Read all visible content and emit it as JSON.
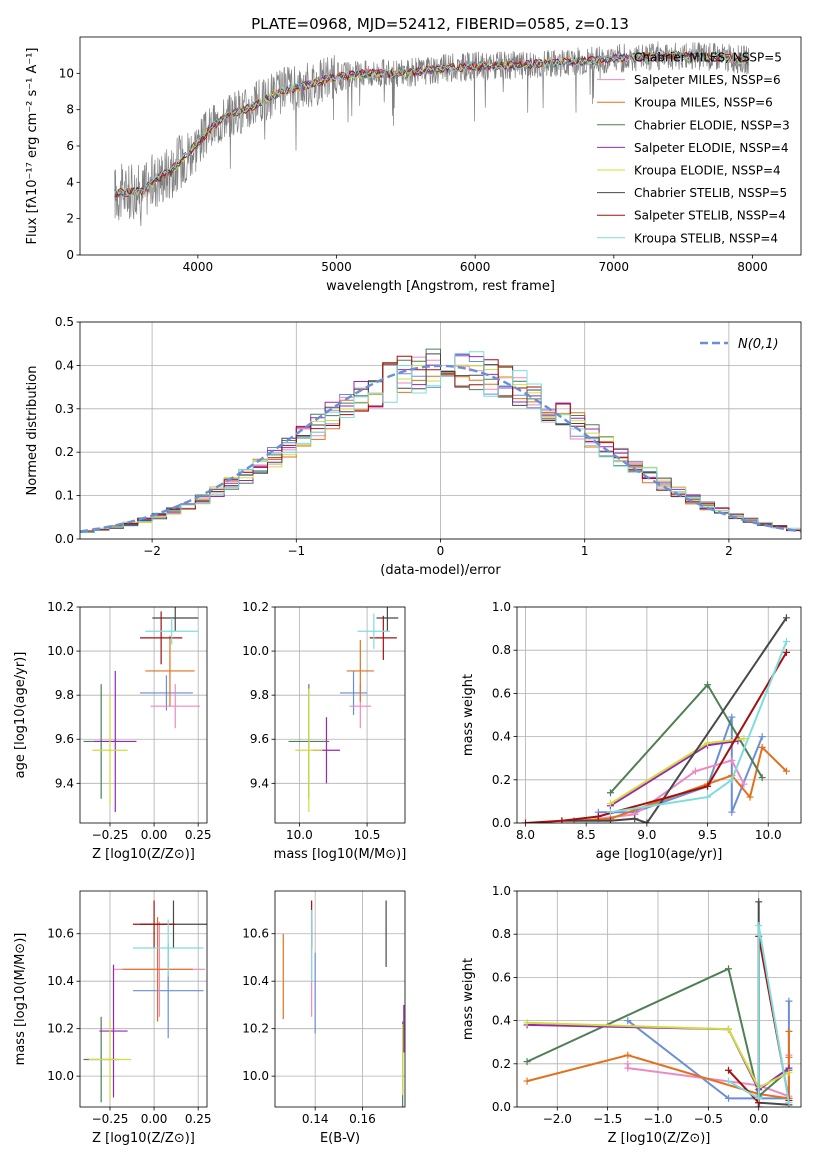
{
  "figure_title": "PLATE=0968, MJD=52412, FIBERID=0585, z=0.13",
  "colors": {
    "chabrier_miles": "#6a8fd6",
    "salpeter_miles": "#ee88c4",
    "kroupa_miles": "#e2711e",
    "chabrier_elodie": "#4f7f55",
    "salpeter_elodie": "#9b27b6",
    "kroupa_elodie": "#cfdd3e",
    "chabrier_stelib": "#484848",
    "salpeter_stelib": "#a31010",
    "kroupa_stelib": "#7fdcdc",
    "data": "#808080",
    "gaussian": "#6a8fd6"
  },
  "chart_data": [
    {
      "id": "spectrum",
      "type": "line",
      "title": "PLATE=0968, MJD=52412, FIBERID=0585, z=0.13",
      "xlabel": "wavelength [Angstrom, rest frame]",
      "ylabel": "Flux [fλ10⁻¹⁷ erg cm⁻² s⁻¹ A⁻¹]",
      "xlim": [
        3150,
        8350
      ],
      "ylim": [
        0,
        12
      ],
      "xticks": [
        "4000",
        "5000",
        "6000",
        "7000",
        "8000"
      ],
      "yticks": [
        "0",
        "2",
        "4",
        "6",
        "8",
        "10"
      ],
      "legend": "top-right",
      "legend_entries": [
        "Chabrier MILES, NSSP=5",
        "Salpeter MILES, NSSP=6",
        "Kroupa MILES, NSSP=6",
        "Chabrier ELODIE, NSSP=3",
        "Salpeter ELODIE, NSSP=4",
        "Kroupa ELODIE, NSSP=4",
        "Chabrier STELIB, NSSP=5",
        "Salpeter STELIB, NSSP=4",
        "Kroupa STELIB, NSSP=4"
      ],
      "continuum": {
        "x": [
          3400,
          3600,
          3700,
          3800,
          3900,
          4000,
          4100,
          4200,
          4400,
          4600,
          4800,
          5000,
          5200,
          5400,
          5600,
          5800,
          6000,
          6200,
          6400,
          6600,
          6800,
          7000,
          7200,
          7400,
          7700,
          8000
        ],
        "y": [
          3.4,
          3.5,
          4.2,
          4.6,
          5.4,
          6.2,
          7.0,
          7.6,
          8.2,
          9.0,
          9.4,
          9.8,
          10.0,
          10.0,
          10.1,
          10.3,
          10.4,
          10.4,
          10.5,
          10.6,
          10.7,
          10.8,
          10.9,
          11.0,
          10.9,
          10.7
        ]
      }
    },
    {
      "id": "residuals",
      "type": "line",
      "xlabel": "(data-model)/error",
      "ylabel": "Normed distribution",
      "xlim": [
        -2.5,
        2.5
      ],
      "ylim": [
        0,
        0.5
      ],
      "xticks": [
        "−2",
        "−1",
        "0",
        "1",
        "2"
      ],
      "yticks": [
        "0.0",
        "0.1",
        "0.2",
        "0.3",
        "0.4",
        "0.5"
      ],
      "legend": "top-right",
      "legend_entries": [
        "N(0,1)"
      ],
      "gaussian": {
        "mean": 0,
        "sigma": 1
      },
      "bin_width": 0.1
    },
    {
      "id": "age_vs_Z",
      "type": "scatter",
      "xlabel": "Z [log10(Z/Z⊙)]",
      "ylabel": "age  [log10(age/yr)]",
      "xlim": [
        -0.42,
        0.3
      ],
      "ylim": [
        9.22,
        10.2
      ],
      "xticks": [
        "−0.25",
        "0.00",
        "0.25"
      ],
      "yticks": [
        "9.4",
        "9.6",
        "9.8",
        "10.0",
        "10.2"
      ],
      "points": [
        {
          "model": "chabrier_miles",
          "x": 0.07,
          "xerr": 0.15,
          "y": 9.81,
          "yerr": 0.08
        },
        {
          "model": "salpeter_miles",
          "x": 0.12,
          "xerr": 0.14,
          "y": 9.75,
          "yerr": 0.1
        },
        {
          "model": "kroupa_miles",
          "x": 0.09,
          "xerr": 0.14,
          "y": 9.91,
          "yerr": 0.16
        },
        {
          "model": "chabrier_elodie",
          "x": -0.3,
          "xerr": 0.1,
          "y": 9.59,
          "yerr": 0.26
        },
        {
          "model": "salpeter_elodie",
          "x": -0.22,
          "xerr": 0.12,
          "y": 9.59,
          "yerr": 0.32
        },
        {
          "model": "kroupa_elodie",
          "x": -0.25,
          "xerr": 0.1,
          "y": 9.55,
          "yerr": 0.25
        },
        {
          "model": "chabrier_stelib",
          "x": 0.12,
          "xerr": 0.13,
          "y": 10.15,
          "yerr": 0.06
        },
        {
          "model": "salpeter_stelib",
          "x": 0.04,
          "xerr": 0.12,
          "y": 10.06,
          "yerr": 0.12
        },
        {
          "model": "kroupa_stelib",
          "x": 0.1,
          "xerr": 0.15,
          "y": 10.09,
          "yerr": 0.06
        }
      ]
    },
    {
      "id": "age_vs_mass",
      "type": "scatter",
      "xlabel": "mass [log10(M/M⊙)]",
      "ylabel": "",
      "xlim": [
        9.82,
        10.78
      ],
      "ylim": [
        9.22,
        10.2
      ],
      "xticks": [
        "10.0",
        "10.5"
      ],
      "yticks": [
        "9.4",
        "9.6",
        "9.8",
        "10.0",
        "10.2"
      ],
      "points": [
        {
          "model": "chabrier_miles",
          "x": 10.4,
          "xerr": 0.1,
          "y": 9.81,
          "yerr": 0.1
        },
        {
          "model": "salpeter_miles",
          "x": 10.45,
          "xerr": 0.08,
          "y": 9.75,
          "yerr": 0.1
        },
        {
          "model": "kroupa_miles",
          "x": 10.45,
          "xerr": 0.1,
          "y": 9.91,
          "yerr": 0.14
        },
        {
          "model": "chabrier_elodie",
          "x": 10.07,
          "xerr": 0.15,
          "y": 9.59,
          "yerr": 0.26
        },
        {
          "model": "salpeter_elodie",
          "x": 10.2,
          "xerr": 0.1,
          "y": 9.55,
          "yerr": 0.15
        },
        {
          "model": "kroupa_elodie",
          "x": 10.07,
          "xerr": 0.1,
          "y": 9.55,
          "yerr": 0.28
        },
        {
          "model": "chabrier_stelib",
          "x": 10.65,
          "xerr": 0.08,
          "y": 10.15,
          "yerr": 0.06
        },
        {
          "model": "salpeter_stelib",
          "x": 10.62,
          "xerr": 0.1,
          "y": 10.06,
          "yerr": 0.1
        },
        {
          "model": "kroupa_stelib",
          "x": 10.55,
          "xerr": 0.12,
          "y": 10.09,
          "yerr": 0.08
        }
      ]
    },
    {
      "id": "weight_vs_age",
      "type": "line",
      "xlabel": "age  [log10(age/yr)]",
      "ylabel": "mass weight",
      "xlim": [
        7.93,
        10.27
      ],
      "ylim": [
        0,
        1
      ],
      "xticks": [
        "8.0",
        "8.5",
        "9.0",
        "9.5",
        "10.0"
      ],
      "yticks": [
        "0.0",
        "0.2",
        "0.4",
        "0.6",
        "0.8",
        "1.0"
      ],
      "series": [
        {
          "model": "chabrier_miles",
          "x": [
            8.6,
            8.9,
            9.5,
            9.7,
            9.7,
            9.95
          ],
          "y": [
            0.05,
            0.05,
            0.17,
            0.49,
            0.05,
            0.4
          ]
        },
        {
          "model": "salpeter_miles",
          "x": [
            8.6,
            8.9,
            9.4,
            9.7,
            9.8
          ],
          "y": [
            0.02,
            0.04,
            0.24,
            0.29,
            0.18
          ]
        },
        {
          "model": "kroupa_miles",
          "x": [
            8.4,
            8.7,
            9.5,
            9.7,
            9.85,
            9.95,
            10.15
          ],
          "y": [
            0.01,
            0.02,
            0.18,
            0.22,
            0.12,
            0.35,
            0.24
          ]
        },
        {
          "model": "chabrier_elodie",
          "x": [
            8.7,
            9.5,
            9.95
          ],
          "y": [
            0.14,
            0.64,
            0.21
          ]
        },
        {
          "model": "salpeter_elodie",
          "x": [
            8.7,
            9.5,
            9.75
          ],
          "y": [
            0.08,
            0.36,
            0.38
          ]
        },
        {
          "model": "kroupa_elodie",
          "x": [
            8.7,
            9.5,
            9.8
          ],
          "y": [
            0.09,
            0.37,
            0.39
          ]
        },
        {
          "model": "chabrier_stelib",
          "x": [
            8.3,
            8.7,
            8.9,
            9.0,
            10.15
          ],
          "y": [
            0.01,
            0.01,
            0.02,
            0.0,
            0.95
          ]
        },
        {
          "model": "salpeter_stelib",
          "x": [
            8.0,
            8.3,
            8.6,
            9.5,
            10.15
          ],
          "y": [
            0.0,
            0.01,
            0.03,
            0.17,
            0.79
          ]
        },
        {
          "model": "kroupa_stelib",
          "x": [
            8.7,
            9.5,
            9.7,
            10.15
          ],
          "y": [
            0.05,
            0.12,
            0.2,
            0.84
          ]
        }
      ]
    },
    {
      "id": "mass_vs_Z",
      "type": "scatter",
      "xlabel": "Z [log10(Z/Z⊙)]",
      "ylabel": "mass [log10(M/M⊙)]",
      "xlim": [
        -0.42,
        0.3
      ],
      "ylim": [
        9.87,
        10.78
      ],
      "xticks": [
        "−0.25",
        "0.00",
        "0.25"
      ],
      "yticks": [
        "10.0",
        "10.2",
        "10.4",
        "10.6"
      ],
      "points": [
        {
          "model": "chabrier_miles",
          "x": 0.08,
          "xerr": 0.2,
          "y": 10.36,
          "yerr": 0.2
        },
        {
          "model": "salpeter_miles",
          "x": 0.03,
          "xerr": 0.26,
          "y": 10.45,
          "yerr": 0.2
        },
        {
          "model": "kroupa_miles",
          "x": 0.02,
          "xerr": 0.2,
          "y": 10.45,
          "yerr": 0.22
        },
        {
          "model": "chabrier_elodie",
          "x": -0.3,
          "xerr": 0.1,
          "y": 10.07,
          "yerr": 0.18
        },
        {
          "model": "salpeter_elodie",
          "x": -0.23,
          "xerr": 0.08,
          "y": 10.19,
          "yerr": 0.28
        },
        {
          "model": "kroupa_elodie",
          "x": -0.25,
          "xerr": 0.12,
          "y": 10.07,
          "yerr": 0.17
        },
        {
          "model": "chabrier_stelib",
          "x": 0.11,
          "xerr": 0.19,
          "y": 10.64,
          "yerr": 0.1
        },
        {
          "model": "salpeter_stelib",
          "x": 0.0,
          "xerr": 0.12,
          "y": 10.64,
          "yerr": 0.1
        },
        {
          "model": "kroupa_stelib",
          "x": 0.08,
          "xerr": 0.2,
          "y": 10.54,
          "yerr": 0.12
        }
      ]
    },
    {
      "id": "mass_vs_ebv",
      "type": "scatter",
      "xlabel": "E(B-V)",
      "ylabel": "",
      "xlim": [
        0.123,
        0.178
      ],
      "ylim": [
        9.87,
        10.78
      ],
      "xticks": [
        "0.14",
        "0.16"
      ],
      "yticks": [
        "10.0",
        "10.2",
        "10.4",
        "10.6"
      ],
      "points": [
        {
          "model": "chabrier_miles",
          "x": 0.14,
          "y": 10.35,
          "yerr": 0.17
        },
        {
          "model": "salpeter_miles",
          "x": 0.1385,
          "y": 10.45,
          "yerr": 0.2
        },
        {
          "model": "kroupa_miles",
          "x": 0.1265,
          "y": 10.42,
          "yerr": 0.18
        },
        {
          "model": "chabrier_elodie",
          "x": 0.177,
          "y": 10.05,
          "yerr": 0.18
        },
        {
          "model": "salpeter_elodie",
          "x": 0.1775,
          "y": 10.2,
          "yerr": 0.1
        },
        {
          "model": "kroupa_elodie",
          "x": 0.177,
          "y": 10.07,
          "yerr": 0.15
        },
        {
          "model": "chabrier_stelib",
          "x": 0.17,
          "y": 10.6,
          "yerr": 0.14
        },
        {
          "model": "salpeter_stelib",
          "x": 0.1385,
          "y": 10.64,
          "yerr": 0.1
        },
        {
          "model": "kroupa_stelib",
          "x": 0.1385,
          "y": 10.55,
          "yerr": 0.15
        }
      ]
    },
    {
      "id": "weight_vs_Z",
      "type": "line",
      "xlabel": "Z [log10(Z/Z⊙)]",
      "ylabel": "mass weight",
      "xlim": [
        -2.4,
        0.42
      ],
      "ylim": [
        0,
        1
      ],
      "xticks": [
        "−2.0",
        "−1.5",
        "−1.0",
        "−0.5",
        "0.0"
      ],
      "yticks": [
        "0.0",
        "0.2",
        "0.4",
        "0.6",
        "0.8",
        "1.0"
      ],
      "series": [
        {
          "model": "chabrier_miles",
          "x": [
            -1.3,
            -0.3,
            0.3,
            0.3
          ],
          "y": [
            0.4,
            0.04,
            0.04,
            0.49
          ]
        },
        {
          "model": "salpeter_miles",
          "x": [
            -1.3,
            -1.3,
            0.0,
            0.3,
            0.3
          ],
          "y": [
            0.2,
            0.18,
            0.1,
            0.05,
            0.24
          ]
        },
        {
          "model": "kroupa_miles",
          "x": [
            -2.3,
            -1.3,
            0.0,
            0.3,
            0.3,
            0.3
          ],
          "y": [
            0.12,
            0.24,
            0.06,
            0.04,
            0.35,
            0.23
          ]
        },
        {
          "model": "chabrier_elodie",
          "x": [
            -2.3,
            -0.3,
            0.0,
            0.3
          ],
          "y": [
            0.21,
            0.64,
            0.05,
            0.17
          ]
        },
        {
          "model": "salpeter_elodie",
          "x": [
            -2.3,
            -0.3,
            0.0,
            0.3
          ],
          "y": [
            0.38,
            0.36,
            0.08,
            0.18
          ]
        },
        {
          "model": "kroupa_elodie",
          "x": [
            -2.3,
            -0.3,
            0.0,
            0.3
          ],
          "y": [
            0.39,
            0.36,
            0.09,
            0.16
          ]
        },
        {
          "model": "chabrier_stelib",
          "x": [
            0.0,
            0.0,
            0.0,
            0.3
          ],
          "y": [
            0.95,
            0.0,
            0.02,
            0.01
          ]
        },
        {
          "model": "salpeter_stelib",
          "x": [
            -0.3,
            0.0,
            0.0,
            0.3
          ],
          "y": [
            0.17,
            0.02,
            0.79,
            0.03
          ]
        },
        {
          "model": "kroupa_stelib",
          "x": [
            -0.3,
            0.0,
            0.0,
            0.3
          ],
          "y": [
            0.12,
            0.04,
            0.84,
            0.02
          ]
        }
      ]
    }
  ]
}
